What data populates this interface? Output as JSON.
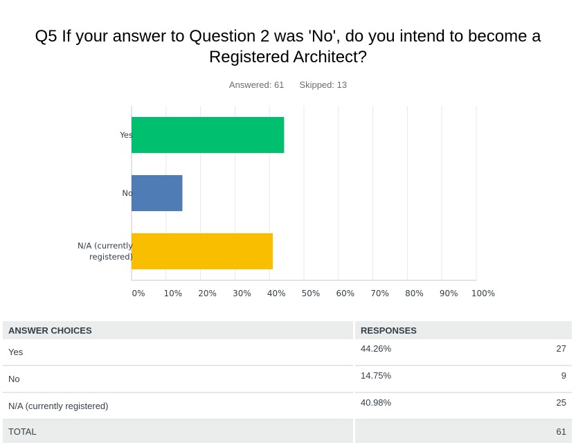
{
  "question": {
    "title_line1": "Q5 If your answer to Question 2 was 'No', do you intend to become a",
    "title_line2": "Registered Architect?",
    "answered": "Answered: 61",
    "skipped": "Skipped: 13"
  },
  "chart_data": {
    "type": "bar",
    "orientation": "horizontal",
    "categories": [
      "Yes",
      "No",
      "N/A (currently registered)"
    ],
    "category_label_lines": [
      [
        "Yes"
      ],
      [
        "No"
      ],
      [
        "N/A (currently",
        "registered)"
      ]
    ],
    "values": [
      44.26,
      14.75,
      40.98
    ],
    "colors": [
      "#00bf6f",
      "#507cb6",
      "#f9be00"
    ],
    "xlim": [
      0,
      100
    ],
    "xticks": [
      "0%",
      "10%",
      "20%",
      "30%",
      "40%",
      "50%",
      "60%",
      "70%",
      "80%",
      "90%",
      "100%"
    ],
    "grid": true
  },
  "table": {
    "headers": [
      "ANSWER CHOICES",
      "RESPONSES"
    ],
    "rows": [
      {
        "choice": "Yes",
        "percent": "44.26%",
        "count": "27"
      },
      {
        "choice": "No",
        "percent": "14.75%",
        "count": "9"
      },
      {
        "choice": "N/A (currently registered)",
        "percent": "40.98%",
        "count": "25"
      }
    ],
    "total_label": "TOTAL",
    "total_count": "61"
  }
}
